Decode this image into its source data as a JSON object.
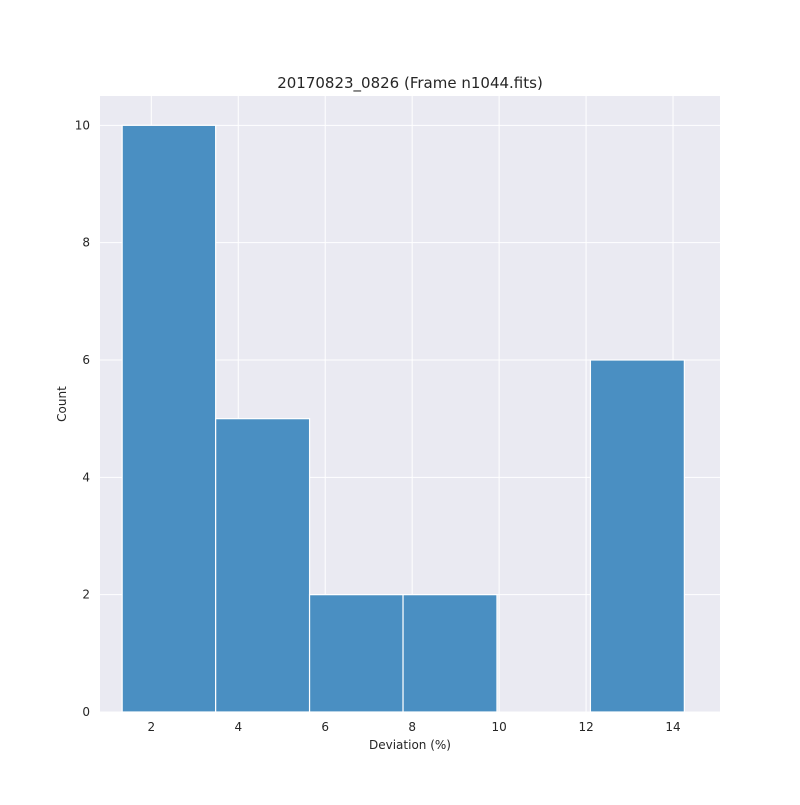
{
  "chart_data": {
    "type": "bar",
    "title": "20170823_0826 (Frame n1044.fits)",
    "xlabel": "Deviation (%)",
    "ylabel": "Count",
    "xlim": [
      0.82,
      15.08
    ],
    "ylim": [
      0,
      10.5
    ],
    "xticks": [
      2,
      4,
      6,
      8,
      10,
      12,
      14
    ],
    "yticks": [
      0,
      2,
      4,
      6,
      8,
      10
    ],
    "bins": [
      {
        "left": 1.33,
        "right": 3.48,
        "count": 10
      },
      {
        "left": 3.48,
        "right": 5.64,
        "count": 5
      },
      {
        "left": 5.64,
        "right": 7.79,
        "count": 2
      },
      {
        "left": 7.79,
        "right": 9.95,
        "count": 2
      },
      {
        "left": 9.95,
        "right": 12.1,
        "count": 0
      },
      {
        "left": 12.1,
        "right": 14.26,
        "count": 6
      }
    ],
    "grid": true,
    "colors": {
      "bar": "#4a8fc2",
      "bar_edge": "#ffffff",
      "plot_background": "#eaeaf2",
      "grid": "#ffffff"
    }
  }
}
